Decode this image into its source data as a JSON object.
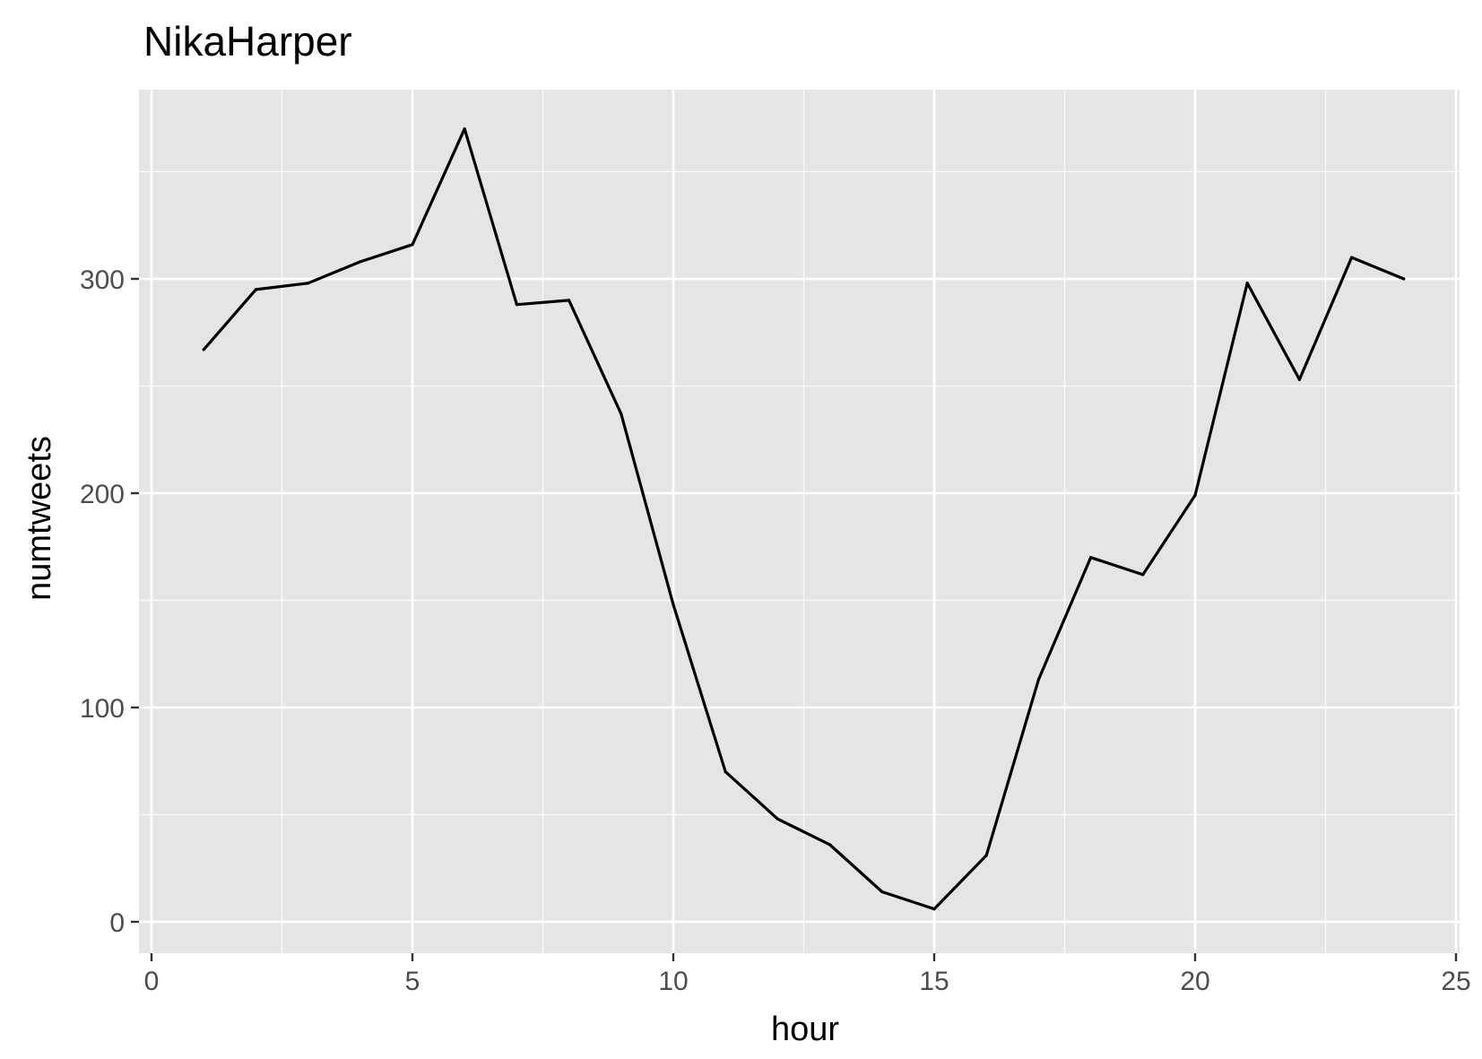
{
  "colors": {
    "panel_background": "#e5e5e5",
    "grid_major": "#ffffff",
    "grid_minor": "#f2f2f2",
    "line": "#000000",
    "tick_text": "#4d4d4d",
    "tick_mark": "#333333"
  },
  "chart_data": {
    "type": "line",
    "title": "NikaHarper",
    "xlabel": "hour",
    "ylabel": "numtweets",
    "xlim": [
      0,
      25
    ],
    "ylim": [
      0,
      370
    ],
    "grid": true,
    "x_ticks": [
      0,
      5,
      10,
      15,
      20,
      25
    ],
    "y_ticks": [
      0,
      100,
      200,
      300
    ],
    "x_tick_labels": [
      "0",
      "5",
      "10",
      "15",
      "20",
      "25"
    ],
    "y_tick_labels": [
      "0",
      "100",
      "200",
      "300"
    ],
    "x_minor_ticks": [
      2.5,
      7.5,
      12.5,
      17.5,
      22.5
    ],
    "y_minor_ticks": [
      50,
      150,
      250,
      350
    ],
    "x": [
      1,
      2,
      3,
      4,
      5,
      6,
      7,
      8,
      9,
      10,
      11,
      12,
      13,
      14,
      15,
      16,
      17,
      18,
      19,
      20,
      21,
      22,
      23,
      24
    ],
    "y": [
      267,
      295,
      298,
      308,
      316,
      370,
      288,
      290,
      237,
      148,
      70,
      48,
      36,
      14,
      6,
      31,
      113,
      170,
      162,
      199,
      298,
      253,
      310,
      300
    ]
  }
}
